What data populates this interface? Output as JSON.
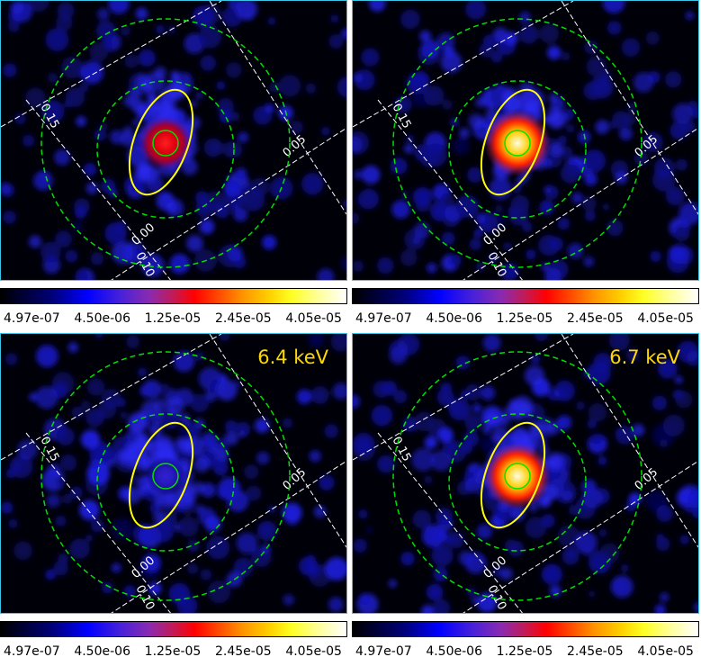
{
  "colors": {
    "frame_border": "#39c6e6",
    "circle_color": "#00e000",
    "ellipse_color": "#ffff00",
    "grid_color": "#ffffff",
    "label_color": "#ffd800"
  },
  "colorbar": {
    "ticks": [
      "4.97e-07",
      "4.50e-06",
      "1.25e-05",
      "2.45e-05",
      "4.05e-05"
    ]
  },
  "panels": [
    {
      "label": "",
      "source_intensity": "moderate",
      "grid_labels": [
        "0.15",
        "0.05",
        "0.00",
        "0.10"
      ]
    },
    {
      "label": "",
      "source_intensity": "bright",
      "grid_labels": [
        "0.15",
        "0.05",
        "0.00",
        "0.10"
      ]
    },
    {
      "label": "6.4 keV",
      "source_intensity": "faint",
      "grid_labels": [
        "0.15",
        "0.05",
        "0.00",
        "0.10"
      ]
    },
    {
      "label": "6.7 keV",
      "source_intensity": "bright",
      "grid_labels": [
        "0.15",
        "0.05",
        "0.00",
        "0.10"
      ]
    }
  ]
}
